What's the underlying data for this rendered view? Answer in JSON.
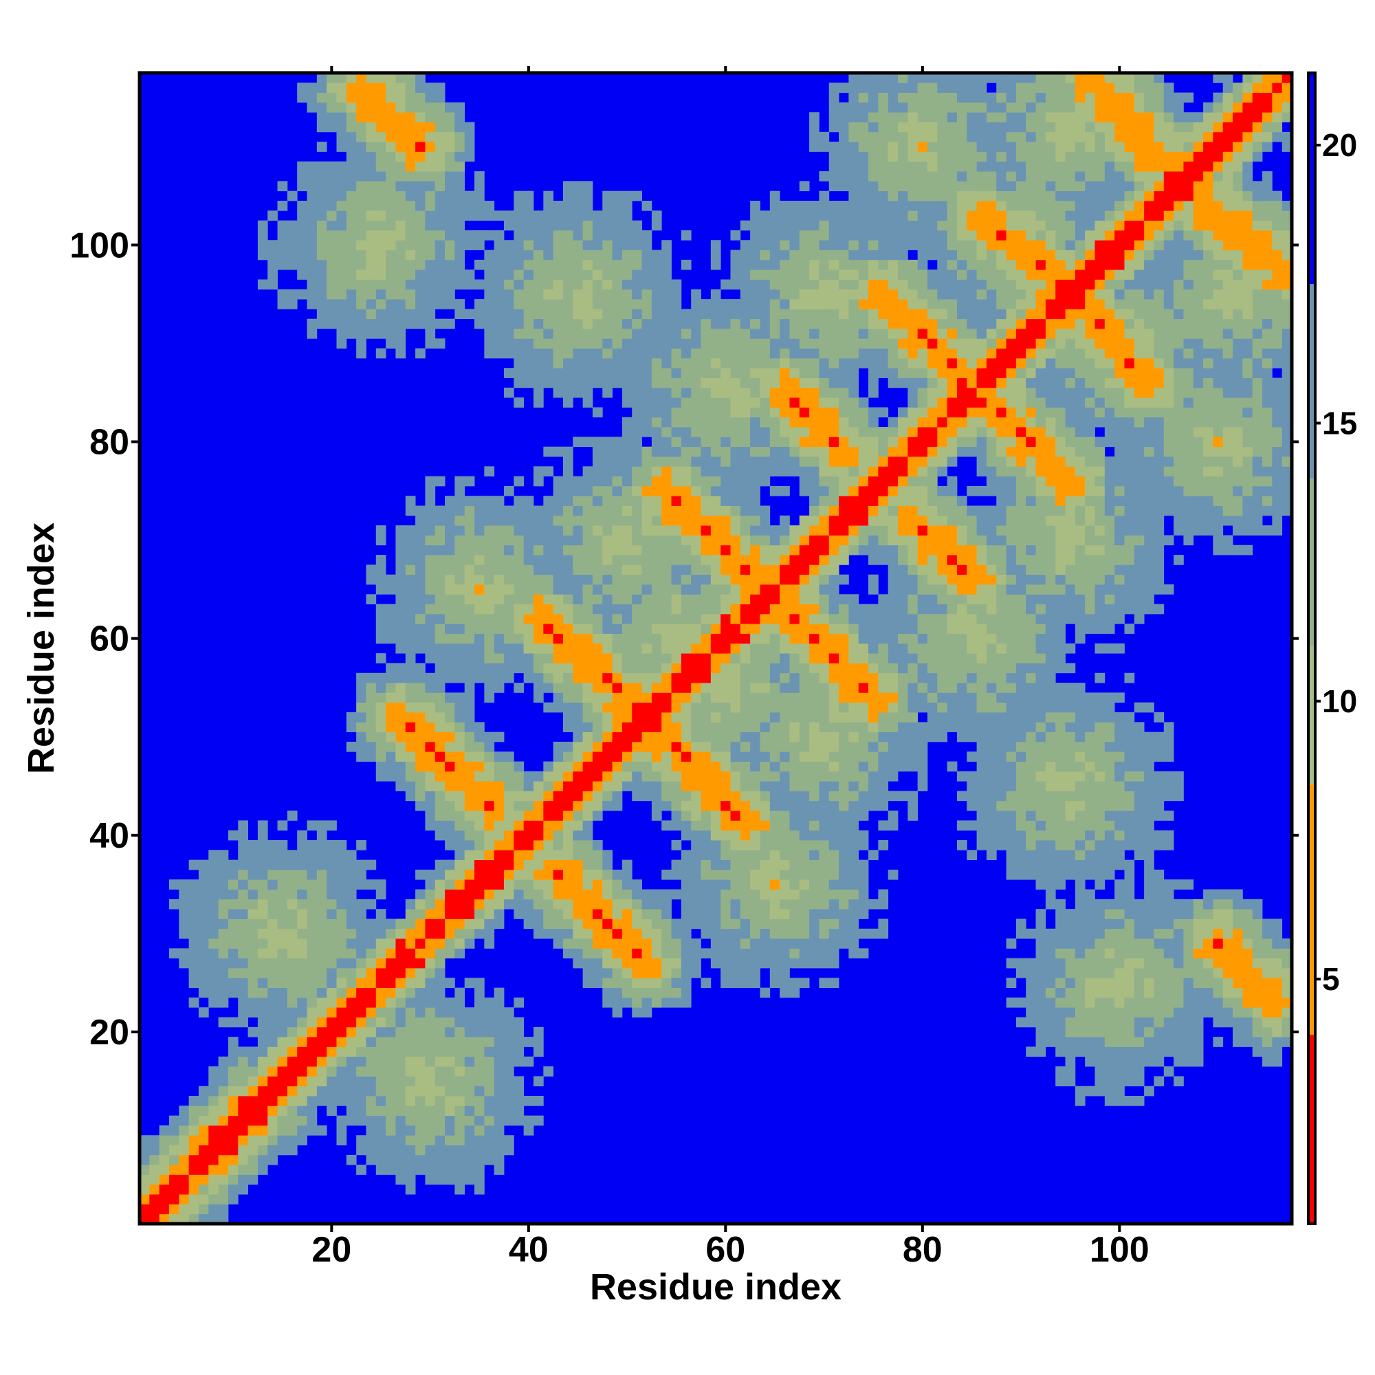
{
  "chart_data": {
    "type": "heatmap",
    "title": "",
    "xlabel": "Residue index",
    "ylabel": "Residue index",
    "n_residues": 117,
    "xlim": [
      1,
      117
    ],
    "ylim": [
      1,
      117
    ],
    "x_ticks": [
      20,
      40,
      60,
      80,
      100
    ],
    "y_ticks": [
      20,
      40,
      60,
      80,
      100
    ],
    "x_tick_labels": [
      "20",
      "40",
      "60",
      "80",
      "100"
    ],
    "y_tick_labels": [
      "20",
      "40",
      "60",
      "80",
      "100"
    ],
    "colorbar": {
      "ticks": [
        5,
        10,
        15,
        20
      ],
      "tick_labels": [
        "5",
        "10",
        "15",
        "20"
      ],
      "range": [
        0.6,
        21.3
      ],
      "placement": "right"
    },
    "color_scale": {
      "background": "#0000f4",
      "bins": [
        {
          "max": 4.0,
          "color": "#ff0000"
        },
        {
          "max": 8.5,
          "color": "#ff9b00"
        },
        {
          "max": 11.0,
          "color": "#a9bd83"
        },
        {
          "max": 14.0,
          "color": "#93b189"
        },
        {
          "max": 17.5,
          "color": "#6b94b3"
        },
        {
          "max": 21.3,
          "color": "#0000f4"
        }
      ]
    },
    "structure": {
      "diagonal": "distance below 4 along i = j",
      "contact_bands": [
        {
          "from": [
            2,
            2
          ],
          "to": [
            14,
            14
          ],
          "kind": "helix",
          "orient": "parallel"
        },
        {
          "from": [
            23,
            116
          ],
          "to": [
            29,
            110
          ],
          "kind": "strand",
          "orient": "anti"
        },
        {
          "from": [
            27,
            52
          ],
          "to": [
            36,
            43
          ],
          "kind": "strand",
          "orient": "anti"
        },
        {
          "from": [
            41,
            62
          ],
          "to": [
            51,
            53
          ],
          "kind": "strand",
          "orient": "anti"
        },
        {
          "from": [
            54,
            75
          ],
          "to": [
            63,
            66
          ],
          "kind": "strand",
          "orient": "anti"
        },
        {
          "from": [
            66,
            85
          ],
          "to": [
            72,
            79
          ],
          "kind": "strand",
          "orient": "anti"
        },
        {
          "from": [
            76,
            95
          ],
          "to": [
            83,
            88
          ],
          "kind": "strand",
          "orient": "anti"
        },
        {
          "from": [
            86,
            103
          ],
          "to": [
            94,
            96
          ],
          "kind": "strand",
          "orient": "anti"
        },
        {
          "from": [
            97,
            117
          ],
          "to": [
            105,
            108
          ],
          "kind": "strand",
          "orient": "anti"
        }
      ]
    }
  }
}
